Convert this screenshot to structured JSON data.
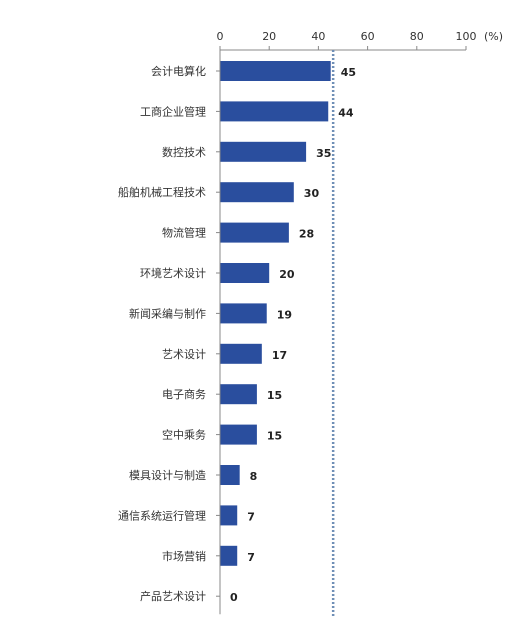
{
  "chart_data": {
    "type": "bar",
    "orientation": "horizontal",
    "categories": [
      "会计电算化",
      "工商企业管理",
      "数控技术",
      "船舶机械工程技术",
      "物流管理",
      "环境艺术设计",
      "新闻采编与制作",
      "艺术设计",
      "电子商务",
      "空中乘务",
      "模具设计与制造",
      "通信系统运行管理",
      "市场营销",
      "产品艺术设计"
    ],
    "values": [
      45,
      44,
      35,
      30,
      28,
      20,
      19,
      17,
      15,
      15,
      8,
      7,
      7,
      0
    ],
    "xlim": [
      0,
      100
    ],
    "x_ticks": [
      0,
      20,
      40,
      60,
      80,
      100
    ],
    "x_tick_labels": [
      "0",
      "20",
      "40",
      "60",
      "80",
      "100"
    ],
    "unit": "(%)",
    "axis_position": "top",
    "reference_line": {
      "value": 46,
      "style": "dotted"
    },
    "grid": false,
    "bar_color": "#2a4e9e",
    "reference_line_color": "#6f8fb6"
  }
}
